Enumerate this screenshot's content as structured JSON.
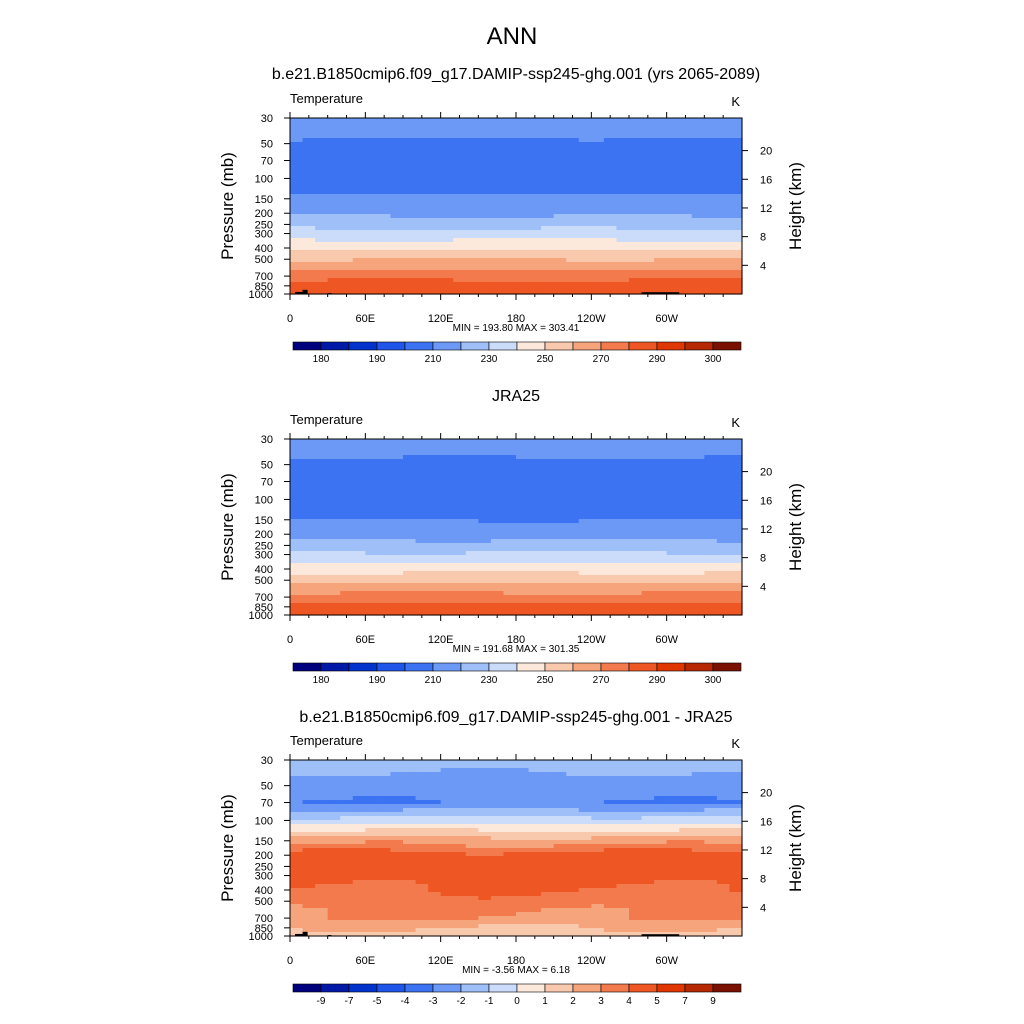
{
  "figure_title": "ANN",
  "chart_data": [
    {
      "type": "heatmap",
      "title": "b.e21.B1850cmip6.f09_g17.DAMIP-ssp245-ghg.001 (yrs 2065-2089)",
      "variable": "Temperature",
      "units": "K",
      "xlabel": "",
      "ylabel": "Pressure (mb)",
      "y2label": "Height (km)",
      "x_ticks": [
        "0",
        "60E",
        "120E",
        "180",
        "120W",
        "60W"
      ],
      "x_tick_lons": [
        0,
        60,
        120,
        180,
        240,
        300
      ],
      "x_range": [
        0,
        360
      ],
      "y_ticks": [
        "30",
        "50",
        "70",
        "100",
        "150",
        "200",
        "250",
        "300",
        "400",
        "500",
        "700",
        "850",
        "1000"
      ],
      "y_tick_values": [
        30,
        50,
        70,
        100,
        150,
        200,
        250,
        300,
        400,
        500,
        700,
        850,
        1000
      ],
      "y_range_mb": [
        30,
        1000
      ],
      "height_ticks": [
        "20",
        "16",
        "12",
        "8",
        "4"
      ],
      "height_tick_values": [
        20,
        16,
        12,
        8,
        4
      ],
      "stats": "MIN = 193.80  MAX = 303.41",
      "min": 193.8,
      "max": 303.41,
      "colorbar_labels": [
        "180",
        "190",
        "210",
        "230",
        "250",
        "270",
        "290",
        "300"
      ],
      "colorbar_label_positions": [
        1,
        3,
        5,
        7,
        9,
        11,
        13,
        15
      ],
      "colorbar_levels": [
        175,
        180,
        185,
        190,
        200,
        210,
        220,
        230,
        240,
        250,
        260,
        270,
        280,
        290,
        295,
        300
      ],
      "profile_levels_mb": [
        30,
        50,
        70,
        100,
        150,
        200,
        250,
        300,
        400,
        500,
        700,
        850,
        1000
      ],
      "zonal_mean_profile": [
        218,
        208,
        202,
        203,
        212,
        218,
        226,
        234,
        248,
        260,
        276,
        285,
        290
      ],
      "topography": true
    },
    {
      "type": "heatmap",
      "title": "JRA25",
      "variable": "Temperature",
      "units": "K",
      "xlabel": "",
      "ylabel": "Pressure (mb)",
      "y2label": "Height (km)",
      "x_ticks": [
        "0",
        "60E",
        "120E",
        "180",
        "120W",
        "60W"
      ],
      "x_tick_lons": [
        0,
        60,
        120,
        180,
        240,
        300
      ],
      "x_range": [
        0,
        360
      ],
      "y_ticks": [
        "30",
        "50",
        "70",
        "100",
        "150",
        "200",
        "250",
        "300",
        "400",
        "500",
        "700",
        "850",
        "1000"
      ],
      "y_tick_values": [
        30,
        50,
        70,
        100,
        150,
        200,
        250,
        300,
        400,
        500,
        700,
        850,
        1000
      ],
      "y_range_mb": [
        30,
        1000
      ],
      "height_ticks": [
        "20",
        "16",
        "12",
        "8",
        "4"
      ],
      "height_tick_values": [
        20,
        16,
        12,
        8,
        4
      ],
      "stats": "MIN = 191.68  MAX = 301.35",
      "min": 191.68,
      "max": 301.35,
      "colorbar_labels": [
        "180",
        "190",
        "210",
        "230",
        "250",
        "270",
        "290",
        "300"
      ],
      "colorbar_label_positions": [
        1,
        3,
        5,
        7,
        9,
        11,
        13,
        15
      ],
      "colorbar_levels": [
        175,
        180,
        185,
        190,
        200,
        210,
        220,
        230,
        240,
        250,
        260,
        270,
        280,
        290,
        295,
        300
      ],
      "profile_levels_mb": [
        30,
        50,
        70,
        100,
        150,
        200,
        250,
        300,
        400,
        500,
        700,
        850,
        1000
      ],
      "zonal_mean_profile": [
        218,
        207,
        201,
        202,
        210,
        216,
        224,
        232,
        246,
        258,
        274,
        283,
        288
      ],
      "topography": false
    },
    {
      "type": "heatmap",
      "title": "b.e21.B1850cmip6.f09_g17.DAMIP-ssp245-ghg.001 - JRA25",
      "variable": "Temperature",
      "units": "K",
      "xlabel": "",
      "ylabel": "Pressure (mb)",
      "y2label": "Height (km)",
      "x_ticks": [
        "0",
        "60E",
        "120E",
        "180",
        "120W",
        "60W"
      ],
      "x_tick_lons": [
        0,
        60,
        120,
        180,
        240,
        300
      ],
      "x_range": [
        0,
        360
      ],
      "y_ticks": [
        "30",
        "50",
        "70",
        "100",
        "150",
        "200",
        "250",
        "300",
        "400",
        "500",
        "700",
        "850",
        "1000"
      ],
      "y_tick_values": [
        30,
        50,
        70,
        100,
        150,
        200,
        250,
        300,
        400,
        500,
        700,
        850,
        1000
      ],
      "y_range_mb": [
        30,
        1000
      ],
      "height_ticks": [
        "20",
        "16",
        "12",
        "8",
        "4"
      ],
      "height_tick_values": [
        20,
        16,
        12,
        8,
        4
      ],
      "stats": "MIN =  -3.56  MAX =   6.18",
      "min": -3.56,
      "max": 6.18,
      "colorbar_labels": [
        "-9",
        "-7",
        "-5",
        "-4",
        "-3",
        "-2",
        "-1",
        "0",
        "1",
        "2",
        "3",
        "4",
        "5",
        "7",
        "9"
      ],
      "colorbar_label_positions": [
        1,
        2,
        3,
        4,
        5,
        6,
        7,
        8,
        9,
        10,
        11,
        12,
        13,
        14,
        15
      ],
      "colorbar_levels": [
        -11,
        -9,
        -7,
        -5,
        -4,
        -3,
        -2,
        -1,
        0,
        1,
        2,
        3,
        4,
        5,
        7,
        9
      ],
      "profile_levels_mb": [
        30,
        50,
        70,
        100,
        150,
        200,
        250,
        300,
        400,
        500,
        700,
        850,
        1000
      ],
      "zonal_mean_profile": [
        -1.5,
        -2.5,
        -3.0,
        -0.5,
        2.5,
        4.5,
        4.5,
        4.5,
        4.0,
        3.5,
        3.0,
        2.0,
        1.5
      ],
      "topography": true
    }
  ],
  "colors": {
    "palette": [
      "#00007f",
      "#0018a6",
      "#0033cc",
      "#1f55e8",
      "#3c73f2",
      "#6b99f5",
      "#9ebff8",
      "#cbdcfb",
      "#fde9db",
      "#f9c9ad",
      "#f6a47b",
      "#f27a4d",
      "#ee5623",
      "#e03700",
      "#b52800",
      "#7a1100"
    ],
    "frame": "#000000",
    "topography": "#000000"
  }
}
